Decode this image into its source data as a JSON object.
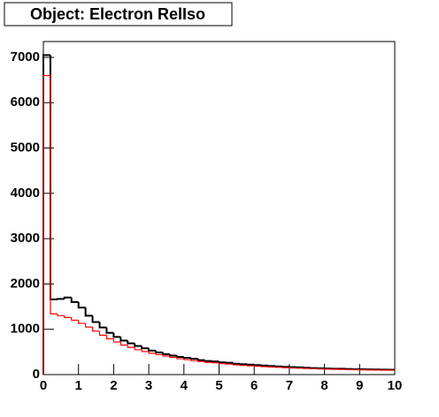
{
  "chart_data": {
    "type": "histogram",
    "title": "Object: Electron RelIso",
    "bins": [
      0,
      0.2,
      0.4,
      0.6,
      0.8,
      1,
      1.2,
      1.4,
      1.6,
      1.8,
      2,
      2.2,
      2.4,
      2.6,
      2.8,
      3,
      3.2,
      3.4,
      3.6,
      3.8,
      4,
      4.2,
      4.4,
      4.6,
      4.8,
      5,
      5.2,
      5.4,
      5.6,
      5.8,
      6,
      6.2,
      6.4,
      6.6,
      6.8,
      7,
      7.2,
      7.4,
      7.6,
      7.8,
      8,
      8.2,
      8.4,
      8.6,
      8.8,
      9,
      9.2,
      9.4,
      9.6,
      9.8,
      10
    ],
    "series": [
      {
        "color": "#000000",
        "values": [
          7050,
          1660,
          1670,
          1700,
          1600,
          1480,
          1300,
          1160,
          1040,
          920,
          830,
          750,
          690,
          630,
          580,
          530,
          490,
          450,
          420,
          390,
          370,
          350,
          320,
          300,
          290,
          270,
          260,
          240,
          230,
          220,
          210,
          200,
          190,
          180,
          170,
          165,
          160,
          150,
          145,
          140,
          135,
          130,
          128,
          125,
          120,
          118,
          115,
          112,
          110,
          108
        ]
      },
      {
        "color": "#ff0000",
        "values": [
          6600,
          1340,
          1300,
          1260,
          1200,
          1130,
          1050,
          960,
          870,
          790,
          720,
          650,
          600,
          550,
          510,
          470,
          440,
          410,
          380,
          350,
          330,
          310,
          290,
          270,
          260,
          240,
          230,
          215,
          205,
          195,
          185,
          175,
          168,
          160,
          152,
          145,
          140,
          135,
          130,
          125,
          120,
          117,
          114,
          110,
          107,
          105,
          102,
          100,
          98,
          96
        ]
      }
    ],
    "xlim": [
      0,
      10
    ],
    "xticks": [
      0,
      1,
      2,
      3,
      4,
      5,
      6,
      7,
      8,
      9,
      10
    ],
    "ylim": [
      0,
      7350
    ],
    "yticks": [
      0,
      1000,
      2000,
      3000,
      4000,
      5000,
      6000,
      7000
    ]
  }
}
